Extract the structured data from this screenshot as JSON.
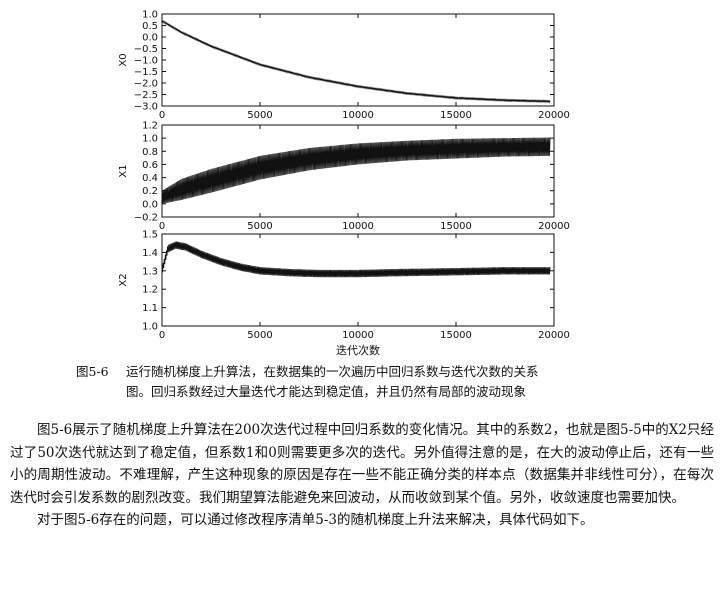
{
  "figure": {
    "caption_number": "图5-6",
    "caption_line1": "运行随机梯度上升算法，在数据集的一次遍历中回归系数与迭代次数的关系",
    "caption_line2": "图。回归系数经过大量迭代才能达到稳定值，并且仍然有局部的波动现象",
    "xlabel": "迭代次数"
  },
  "chart_data": [
    {
      "type": "line",
      "ylabel": "X0",
      "xlim": [
        0,
        20000
      ],
      "ylim": [
        -3.0,
        1.0
      ],
      "yticks": [
        "1.0",
        "0.5",
        "0.0",
        "−0.5",
        "−1.0",
        "−1.5",
        "−2.0",
        "−2.5",
        "−3.0"
      ],
      "xticks": [
        "0",
        "5000",
        "10000",
        "15000",
        "20000"
      ],
      "x": [
        0,
        1000,
        2500,
        5000,
        7500,
        10000,
        12500,
        15000,
        17500,
        19800
      ],
      "y": [
        0.7,
        0.2,
        -0.4,
        -1.2,
        -1.75,
        -2.15,
        -2.45,
        -2.65,
        -2.75,
        -2.8
      ],
      "band": [
        0.03,
        0.03,
        0.03,
        0.03,
        0.03,
        0.03,
        0.03,
        0.03,
        0.03,
        0.03
      ]
    },
    {
      "type": "line",
      "ylabel": "X1",
      "xlim": [
        0,
        20000
      ],
      "ylim": [
        -0.2,
        1.2
      ],
      "yticks": [
        "1.2",
        "1.0",
        "0.8",
        "0.6",
        "0.4",
        "0.2",
        "0.0",
        "−0.2"
      ],
      "xticks": [
        "0",
        "5000",
        "10000",
        "15000",
        "20000"
      ],
      "x": [
        0,
        1000,
        2500,
        5000,
        7500,
        10000,
        12500,
        15000,
        17500,
        19800
      ],
      "y": [
        0.1,
        0.22,
        0.35,
        0.55,
        0.68,
        0.76,
        0.81,
        0.84,
        0.86,
        0.87
      ],
      "band": [
        0.1,
        0.16,
        0.18,
        0.18,
        0.17,
        0.16,
        0.15,
        0.15,
        0.14,
        0.14
      ]
    },
    {
      "type": "line",
      "ylabel": "X2",
      "xlim": [
        0,
        20000
      ],
      "ylim": [
        1.0,
        1.5
      ],
      "yticks": [
        "1.5",
        "1.4",
        "1.3",
        "1.2",
        "1.1",
        "1.0"
      ],
      "xticks": [
        "0",
        "5000",
        "10000",
        "15000",
        "20000"
      ],
      "x": [
        0,
        300,
        700,
        1200,
        2000,
        3000,
        4000,
        5000,
        6500,
        8000,
        10000,
        12000,
        15000,
        17500,
        19800
      ],
      "y": [
        1.3,
        1.42,
        1.44,
        1.43,
        1.39,
        1.35,
        1.32,
        1.3,
        1.29,
        1.285,
        1.285,
        1.29,
        1.295,
        1.3,
        1.3
      ],
      "band": [
        0.02,
        0.02,
        0.02,
        0.02,
        0.02,
        0.02,
        0.02,
        0.02,
        0.02,
        0.02,
        0.02,
        0.02,
        0.02,
        0.02,
        0.02
      ]
    }
  ],
  "body": {
    "p1": "图5-6展示了随机梯度上升算法在200次迭代过程中回归系数的变化情况。其中的系数2，也就是图5-5中的X2只经过了50次迭代就达到了稳定值，但系数1和0则需要更多次的迭代。另外值得注意的是，在大的波动停止后，还有一些小的周期性波动。不难理解，产生这种现象的原因是存在一些不能正确分类的样本点（数据集并非线性可分），在每次迭代时会引发系数的剧烈改变。我们期望算法能避免来回波动，从而收敛到某个值。另外，收敛速度也需要加快。",
    "p2": "对于图5-6存在的问题，可以通过修改程序清单5-3的随机梯度上升法来解决，具体代码如下。"
  }
}
